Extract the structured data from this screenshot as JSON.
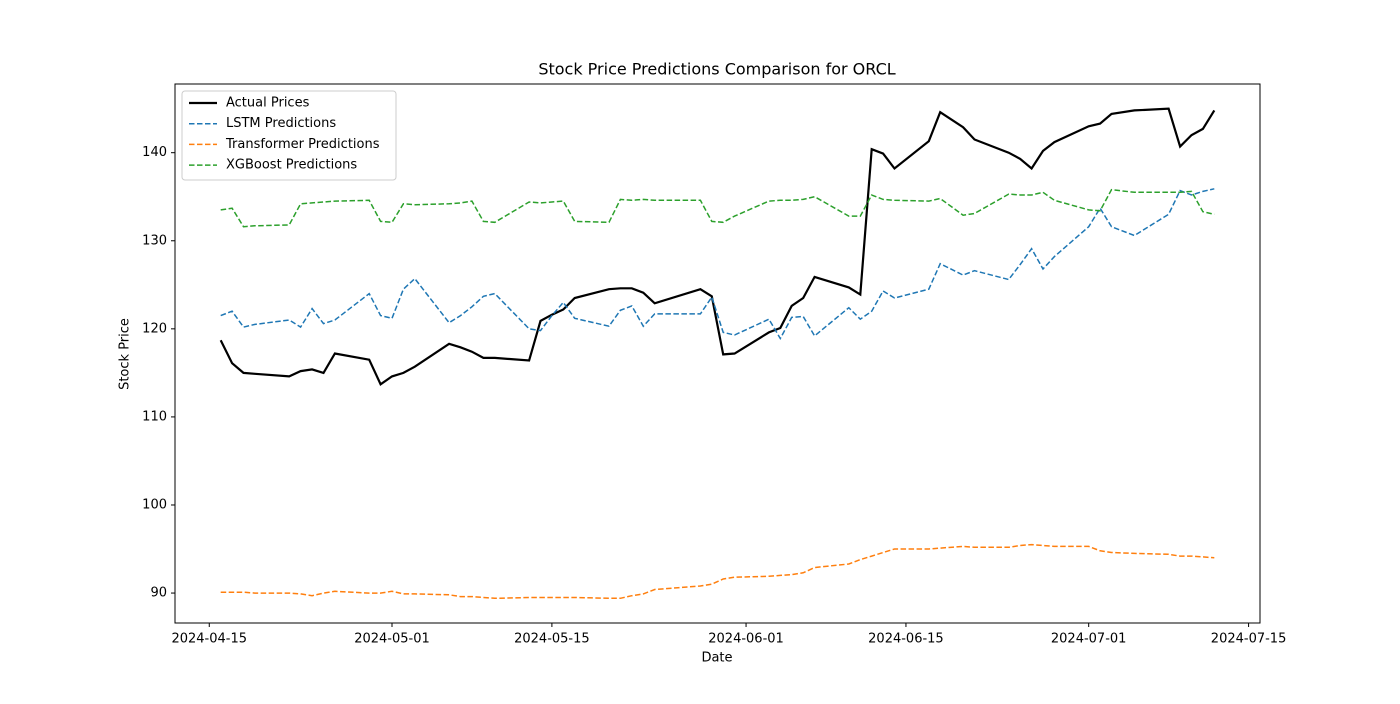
{
  "chart_data": {
    "type": "line",
    "title": "Stock Price Predictions Comparison for ORCL",
    "xlabel": "Date",
    "ylabel": "Stock Price",
    "x": [
      "2024-04-16",
      "2024-04-17",
      "2024-04-18",
      "2024-04-19",
      "2024-04-22",
      "2024-04-23",
      "2024-04-24",
      "2024-04-25",
      "2024-04-26",
      "2024-04-29",
      "2024-04-30",
      "2024-05-01",
      "2024-05-02",
      "2024-05-03",
      "2024-05-06",
      "2024-05-07",
      "2024-05-08",
      "2024-05-09",
      "2024-05-10",
      "2024-05-13",
      "2024-05-14",
      "2024-05-15",
      "2024-05-16",
      "2024-05-17",
      "2024-05-20",
      "2024-05-21",
      "2024-05-22",
      "2024-05-23",
      "2024-05-24",
      "2024-05-28",
      "2024-05-29",
      "2024-05-30",
      "2024-05-31",
      "2024-06-03",
      "2024-06-04",
      "2024-06-05",
      "2024-06-06",
      "2024-06-07",
      "2024-06-10",
      "2024-06-11",
      "2024-06-12",
      "2024-06-13",
      "2024-06-14",
      "2024-06-17",
      "2024-06-18",
      "2024-06-20",
      "2024-06-21",
      "2024-06-24",
      "2024-06-25",
      "2024-06-26",
      "2024-06-27",
      "2024-06-28",
      "2024-07-01",
      "2024-07-02",
      "2024-07-03",
      "2024-07-05",
      "2024-07-08",
      "2024-07-09",
      "2024-07-10",
      "2024-07-11",
      "2024-07-12"
    ],
    "series": [
      {
        "name": "Actual Prices",
        "color": "#000000",
        "style": "solid",
        "values": [
          118.7,
          116.1,
          115.0,
          114.9,
          114.6,
          115.2,
          115.4,
          115.0,
          117.2,
          116.5,
          113.7,
          114.6,
          115.0,
          115.7,
          118.3,
          117.9,
          117.4,
          116.7,
          116.7,
          116.4,
          120.9,
          121.6,
          122.2,
          123.5,
          124.5,
          124.6,
          124.6,
          124.1,
          122.9,
          124.5,
          123.7,
          117.1,
          117.2,
          119.6,
          120.1,
          122.6,
          123.5,
          125.9,
          124.7,
          123.9,
          140.4,
          139.9,
          138.2,
          141.3,
          144.6,
          142.9,
          141.5,
          140.0,
          139.3,
          138.2,
          140.2,
          141.2,
          143.0,
          143.3,
          144.4,
          144.8,
          145.0,
          140.7,
          142.0,
          142.7,
          144.8
        ]
      },
      {
        "name": "LSTM Predictions",
        "color": "#1f77b4",
        "style": "dashed",
        "values": [
          121.5,
          122.0,
          120.2,
          120.5,
          121.0,
          120.2,
          122.3,
          120.6,
          121.0,
          124.0,
          121.5,
          121.2,
          124.5,
          125.7,
          120.7,
          121.5,
          122.5,
          123.7,
          124.0,
          120.0,
          119.8,
          121.5,
          123.0,
          121.2,
          120.3,
          122.1,
          122.6,
          120.3,
          121.7,
          121.7,
          123.6,
          119.6,
          119.3,
          121.1,
          118.9,
          121.3,
          121.4,
          119.2,
          122.4,
          121.1,
          122.0,
          124.3,
          123.5,
          124.5,
          127.4,
          126.1,
          126.6,
          125.6,
          127.3,
          129.1,
          126.8,
          128.2,
          131.6,
          133.7,
          131.6,
          130.6,
          133.0,
          135.7,
          135.2,
          135.6,
          135.9
        ]
      },
      {
        "name": "Transformer Predictions",
        "color": "#ff7f0e",
        "style": "dashed",
        "values": [
          90.1,
          90.1,
          90.1,
          90.0,
          90.0,
          89.9,
          89.7,
          90.0,
          90.2,
          90.0,
          90.0,
          90.2,
          89.9,
          89.9,
          89.8,
          89.6,
          89.6,
          89.5,
          89.4,
          89.5,
          89.5,
          89.5,
          89.5,
          89.5,
          89.4,
          89.4,
          89.7,
          89.9,
          90.4,
          90.8,
          91.0,
          91.6,
          91.8,
          91.9,
          92.0,
          92.1,
          92.3,
          92.9,
          93.3,
          93.8,
          94.2,
          94.6,
          95.0,
          95.0,
          95.1,
          95.3,
          95.2,
          95.2,
          95.4,
          95.5,
          95.4,
          95.3,
          95.3,
          94.8,
          94.6,
          94.5,
          94.4,
          94.2,
          94.2,
          94.1,
          94.0
        ]
      },
      {
        "name": "XGBoost Predictions",
        "color": "#2ca02c",
        "style": "dashed",
        "values": [
          133.5,
          133.7,
          131.6,
          131.7,
          131.8,
          134.2,
          134.3,
          134.4,
          134.5,
          134.6,
          132.2,
          132.1,
          134.2,
          134.1,
          134.2,
          134.3,
          134.5,
          132.2,
          132.1,
          134.4,
          134.3,
          134.4,
          134.5,
          132.2,
          132.1,
          134.7,
          134.6,
          134.7,
          134.6,
          134.6,
          132.2,
          132.1,
          132.8,
          134.5,
          134.6,
          134.6,
          134.7,
          135.0,
          132.8,
          132.8,
          135.2,
          134.7,
          134.6,
          134.5,
          134.8,
          132.9,
          133.1,
          135.3,
          135.2,
          135.2,
          135.5,
          134.6,
          133.5,
          133.4,
          135.8,
          135.5,
          135.5,
          135.5,
          135.6,
          133.3,
          133.0
        ]
      }
    ],
    "xlim": [
      "2024-04-12",
      "2024-07-16"
    ],
    "xticks": [
      "2024-04-15",
      "2024-05-01",
      "2024-05-15",
      "2024-06-01",
      "2024-06-15",
      "2024-07-01",
      "2024-07-15"
    ],
    "ylim": [
      86.6,
      147.8
    ],
    "yticks": [
      90,
      100,
      110,
      120,
      130,
      140
    ],
    "grid": false,
    "legend": "upper left"
  }
}
